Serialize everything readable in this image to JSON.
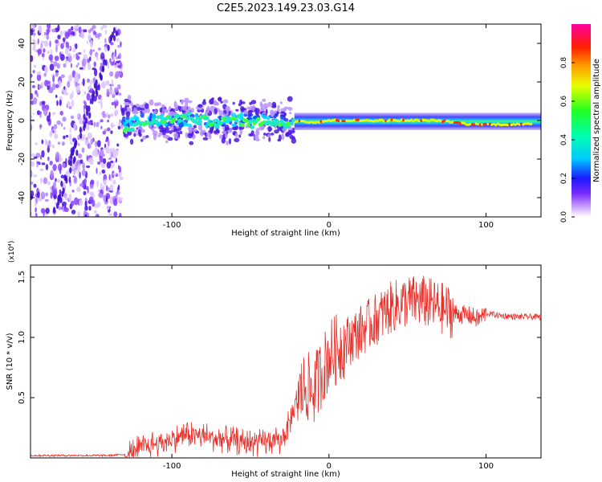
{
  "figure": {
    "title": "C2E5.2023.149.23.03.G14"
  },
  "chart_data": [
    {
      "type": "heatmap",
      "title": "C2E5.2023.149.23.03.G14",
      "xlabel": "Height of straight line (km)",
      "ylabel": "Frequency (Hz)",
      "xlim": [
        -190,
        135
      ],
      "ylim": [
        -50,
        50
      ],
      "x_ticks": [
        -100,
        0,
        100
      ],
      "y_ticks": [
        -40,
        -20,
        0,
        20,
        40
      ],
      "grid": false,
      "colorbar": {
        "label": "Normalized spectral amplitude",
        "range": [
          0,
          1
        ],
        "ticks": [
          0.0,
          0.2,
          0.4,
          0.6,
          0.8
        ],
        "tick_labels": [
          "0.0",
          "0.2",
          "0.4",
          "0.6",
          "0.8"
        ]
      },
      "series": [
        {
          "x": [
            -130,
            -120,
            -110,
            -100,
            -90,
            -80,
            -70,
            -60,
            -50,
            -40,
            -30,
            -20,
            -10,
            0,
            10,
            20,
            30,
            40,
            50,
            60,
            70,
            80,
            90,
            100,
            110,
            120,
            130
          ],
          "y": [
            -4,
            -2,
            0,
            1,
            2,
            0,
            -1,
            1,
            -2,
            0,
            -2,
            0,
            -1,
            0,
            0,
            0,
            0,
            0,
            0,
            0,
            0,
            -1,
            -2,
            -2,
            -2,
            -2,
            -2
          ]
        }
      ],
      "regions": [
        {
          "x_range": [
            -190,
            -132
          ],
          "y_range": [
            -50,
            50
          ],
          "amplitude": 0.25
        },
        {
          "x_range": [
            -132,
            -22
          ],
          "y_range": [
            -10,
            10
          ],
          "amplitude": 0.45
        },
        {
          "x_range": [
            -22,
            135
          ],
          "y_range": [
            -5,
            4
          ],
          "amplitude": 0.75
        }
      ]
    },
    {
      "type": "line",
      "xlabel": "Height of straight line (km)",
      "ylabel": "SNR (10 * v/v)",
      "y_multiplier": "(x10⁴)",
      "xlim": [
        -190,
        135
      ],
      "ylim": [
        0,
        1.6
      ],
      "x_ticks": [
        -100,
        0,
        100
      ],
      "y_ticks": [
        0.5,
        1.0,
        1.5
      ],
      "y_tick_labels": [
        "0.5",
        "1.0",
        "1.5"
      ],
      "color": "#e8302a",
      "grid": false,
      "series": [
        {
          "x": [
            -190,
            -160,
            -140,
            -130,
            -120,
            -110,
            -100,
            -90,
            -80,
            -70,
            -60,
            -50,
            -40,
            -30,
            -25,
            -20,
            -15,
            -10,
            -5,
            0,
            5,
            10,
            20,
            30,
            40,
            50,
            60,
            70,
            80,
            90,
            95,
            100,
            110,
            120,
            130,
            135
          ],
          "y": [
            0.02,
            0.02,
            0.02,
            0.03,
            0.08,
            0.12,
            0.15,
            0.2,
            0.18,
            0.16,
            0.14,
            0.12,
            0.13,
            0.15,
            0.3,
            0.5,
            0.6,
            0.55,
            0.7,
            0.85,
            0.9,
            0.95,
            1.05,
            1.15,
            1.25,
            1.3,
            1.3,
            1.25,
            1.2,
            1.18,
            1.15,
            1.2,
            1.18,
            1.17,
            1.17,
            1.17
          ]
        }
      ]
    }
  ]
}
